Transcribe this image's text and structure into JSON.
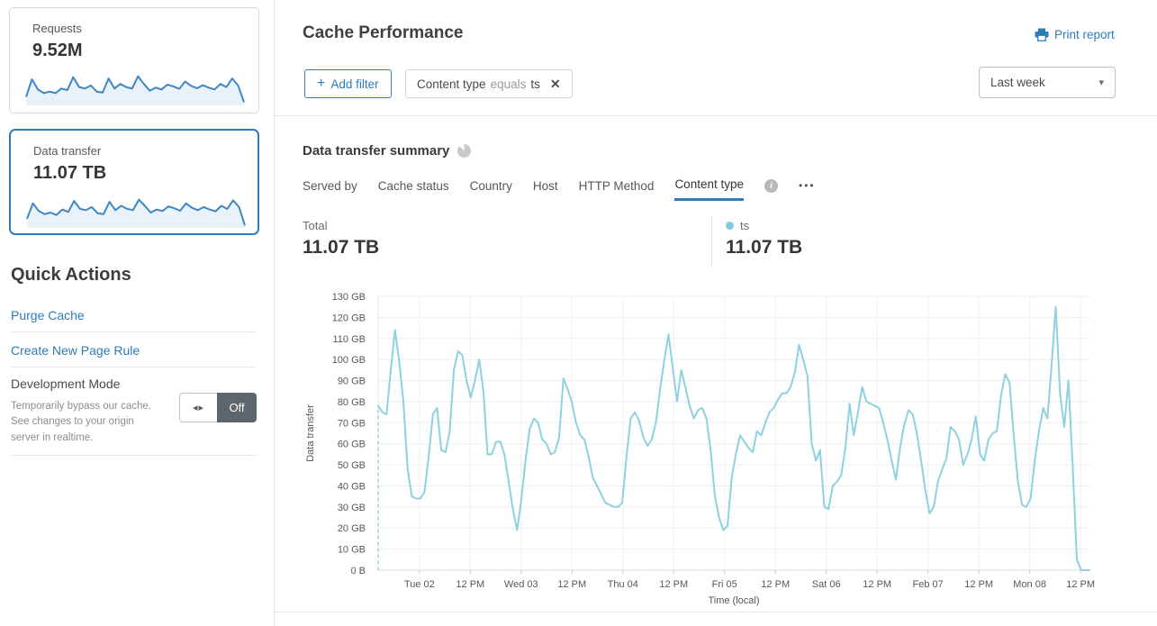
{
  "colors": {
    "accent": "#2f7bbf",
    "link": "#2c7cb8",
    "chart_line": "#8ed1e1",
    "legend_dot": "#7ec9da",
    "spark_line": "#3e87c4",
    "spark_fill": "#e9f2f9",
    "toggle_off_bg": "#5d666c"
  },
  "sidebar": {
    "cards": [
      {
        "label": "Requests",
        "value": "9.52M",
        "spark": [
          28,
          85,
          52,
          40,
          45,
          40,
          55,
          50,
          92,
          60,
          55,
          65,
          45,
          42,
          88,
          55,
          70,
          60,
          55,
          95,
          70,
          48,
          58,
          52,
          68,
          62,
          54,
          78,
          64,
          56,
          66,
          58,
          52,
          70,
          60,
          88,
          65,
          10
        ]
      },
      {
        "label": "Data transfer",
        "value": "11.07 TB",
        "active": true,
        "spark": [
          30,
          80,
          55,
          45,
          50,
          42,
          60,
          52,
          88,
          62,
          58,
          68,
          48,
          45,
          85,
          58,
          72,
          62,
          58,
          92,
          72,
          50,
          60,
          55,
          70,
          64,
          56,
          80,
          66,
          58,
          68,
          60,
          54,
          72,
          62,
          90,
          68,
          8
        ]
      }
    ],
    "quick_actions": {
      "title": "Quick Actions",
      "links": [
        "Purge Cache",
        "Create New Page Rule"
      ],
      "dev_mode": {
        "title": "Development Mode",
        "description": "Temporarily bypass our cache. See changes to your origin server in realtime.",
        "toggle_state": "Off",
        "toggle_icon": "◂▸"
      }
    }
  },
  "header": {
    "title": "Cache Performance",
    "print_label": "Print report",
    "add_filter_label": "Add filter",
    "plus": "+",
    "filter_chip": {
      "field": "Content type",
      "operator": "equals",
      "value": "ts",
      "close": "✕"
    },
    "range_selected": "Last week",
    "caret": "▾"
  },
  "summary": {
    "title": "Data transfer summary",
    "tabs": [
      "Served by",
      "Cache status",
      "Country",
      "Host",
      "HTTP Method",
      "Content type"
    ],
    "active_tab": "Content type",
    "info_glyph": "i",
    "more_label": "•••",
    "total_label": "Total",
    "total_value": "11.07 TB",
    "legend": {
      "name": "ts",
      "value": "11.07 TB"
    }
  },
  "chart_data": {
    "type": "line",
    "series_name": "ts",
    "ylabel": "Data transfer",
    "xlabel": "Time (local)",
    "unit": "GB",
    "ylim": [
      0,
      130
    ],
    "grid": true,
    "legend_position": "above-right",
    "interval": "hourly, Mon Feb 01 ~2 PM through Mon Feb 08 ~2 PM",
    "y_ticks": [
      {
        "v": 0,
        "label": "0 B"
      },
      {
        "v": 10,
        "label": "10 GB"
      },
      {
        "v": 20,
        "label": "20 GB"
      },
      {
        "v": 30,
        "label": "30 GB"
      },
      {
        "v": 40,
        "label": "40 GB"
      },
      {
        "v": 50,
        "label": "50 GB"
      },
      {
        "v": 60,
        "label": "60 GB"
      },
      {
        "v": 70,
        "label": "70 GB"
      },
      {
        "v": 80,
        "label": "80 GB"
      },
      {
        "v": 90,
        "label": "90 GB"
      },
      {
        "v": 100,
        "label": "100 GB"
      },
      {
        "v": 110,
        "label": "110 GB"
      },
      {
        "v": 120,
        "label": "120 GB"
      },
      {
        "v": 130,
        "label": "130 GB"
      }
    ],
    "x_ticks": [
      "Tue 02",
      "12 PM",
      "Wed 03",
      "12 PM",
      "Thu 04",
      "12 PM",
      "Fri 05",
      "12 PM",
      "Sat 06",
      "12 PM",
      "Feb 07",
      "12 PM",
      "Mon 08",
      "12 PM"
    ],
    "x_tick_start_frac": 0.058,
    "x_tick_step_frac": 0.0715,
    "values": [
      78,
      75,
      74,
      95,
      114,
      99,
      80,
      48,
      35,
      34,
      34,
      37,
      54,
      74,
      77,
      57,
      56,
      66,
      95,
      104,
      102,
      90,
      82,
      90,
      100,
      85,
      55,
      55,
      61,
      61,
      55,
      42,
      29,
      19,
      33,
      52,
      67,
      72,
      70,
      62,
      60,
      55,
      56,
      63,
      91,
      86,
      80,
      70,
      64,
      62,
      54,
      44,
      40,
      36,
      32,
      31,
      30,
      30,
      32,
      54,
      72,
      75,
      71,
      63,
      59,
      62,
      70,
      86,
      100,
      112,
      96,
      80,
      95,
      87,
      78,
      72,
      76,
      77,
      72,
      57,
      35,
      25,
      19,
      21,
      44,
      55,
      64,
      61,
      58,
      56,
      66,
      64,
      70,
      75,
      77,
      81,
      84,
      84,
      87,
      94,
      107,
      100,
      92,
      60,
      52,
      57,
      30,
      29,
      40,
      42,
      45,
      58,
      79,
      64,
      75,
      87,
      80,
      79,
      78,
      77,
      70,
      62,
      52,
      43,
      58,
      69,
      76,
      74,
      65,
      52,
      38,
      27,
      30,
      42,
      48,
      53,
      68,
      66,
      62,
      50,
      55,
      62,
      73,
      55,
      52,
      62,
      65,
      66,
      83,
      93,
      89,
      64,
      42,
      31,
      30,
      34,
      52,
      66,
      77,
      72,
      97,
      125,
      84,
      68,
      90,
      50,
      5,
      0,
      0,
      0
    ]
  }
}
